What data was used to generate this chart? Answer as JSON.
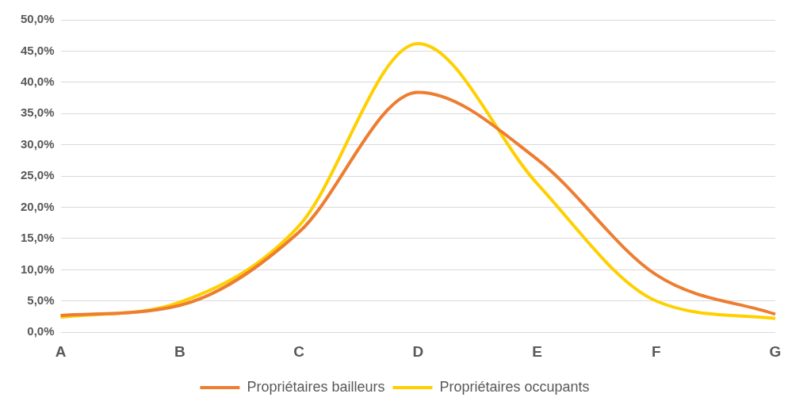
{
  "chart_data": {
    "type": "line",
    "categories": [
      "A",
      "B",
      "C",
      "D",
      "E",
      "F",
      "G"
    ],
    "series": [
      {
        "name": "Propriétaires bailleurs",
        "color": "#ed7d31",
        "values": [
          2.7,
          4.3,
          16.0,
          38.4,
          27.7,
          9.2,
          2.9
        ]
      },
      {
        "name": "Propriétaires occupants",
        "color": "#ffd000",
        "values": [
          2.4,
          4.8,
          17.0,
          46.2,
          23.8,
          5.0,
          2.2
        ]
      }
    ],
    "ylim": [
      0,
      50
    ],
    "yticks": [
      {
        "value": 0,
        "label": "0,0%"
      },
      {
        "value": 5,
        "label": "5,0%"
      },
      {
        "value": 10,
        "label": "10,0%"
      },
      {
        "value": 15,
        "label": "15,0%"
      },
      {
        "value": 20,
        "label": "20,0%"
      },
      {
        "value": 25,
        "label": "25,0%"
      },
      {
        "value": 30,
        "label": "30,0%"
      },
      {
        "value": 35,
        "label": "35,0%"
      },
      {
        "value": 40,
        "label": "40,0%"
      },
      {
        "value": 45,
        "label": "45,0%"
      },
      {
        "value": 50,
        "label": "50,0%"
      }
    ],
    "grid": "y",
    "legend": "bottom",
    "marker": "none",
    "line_style": "solid"
  }
}
